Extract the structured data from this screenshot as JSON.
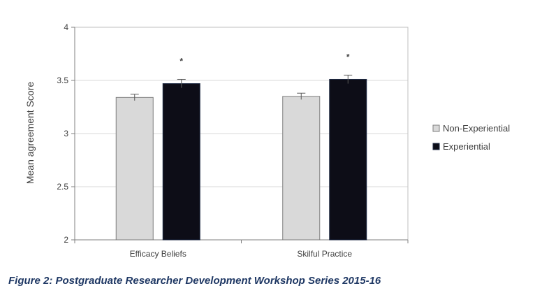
{
  "chart_data": {
    "type": "bar",
    "categories": [
      "Efficacy Beliefs",
      "Skilful Practice"
    ],
    "series": [
      {
        "name": "Non-Experiential",
        "color": "#d9d9d9",
        "values": [
          3.34,
          3.35
        ],
        "errors": [
          0.03,
          0.03
        ],
        "significance": [
          "",
          ""
        ]
      },
      {
        "name": "Experiential",
        "color": "#0d0d17",
        "values": [
          3.47,
          3.51
        ],
        "errors": [
          0.04,
          0.04
        ],
        "significance": [
          "*",
          "*"
        ]
      }
    ],
    "title": "",
    "xlabel": "",
    "ylabel": "Mean agreement Score",
    "ylim": [
      2,
      4
    ],
    "yticks": [
      "2",
      "2.5",
      "3",
      "3.5",
      "4"
    ],
    "grid": true,
    "legend_position": "right"
  },
  "caption": "Figure 2: Postgraduate Researcher Development Workshop Series 2015-16"
}
